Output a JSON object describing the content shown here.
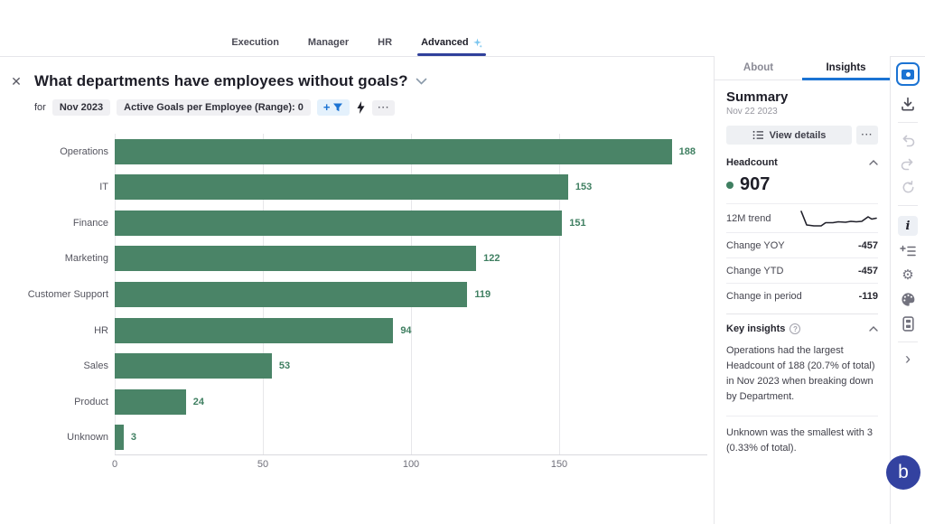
{
  "colors": {
    "accent_blue": "#1b73d3",
    "nav_underline_navy": "#30409b",
    "bar_green": "#4a8467",
    "value_green": "#3f7f61",
    "brand_badge": "#3342a0"
  },
  "top_nav": {
    "tabs": [
      {
        "label": "Execution",
        "active": false
      },
      {
        "label": "Manager",
        "active": false
      },
      {
        "label": "HR",
        "active": false
      },
      {
        "label": "Advanced",
        "active": true,
        "icon": "sparkle-icon"
      }
    ]
  },
  "header": {
    "close_glyph": "✕",
    "title": "What departments have employees without goals?",
    "for_label": "for",
    "chips": [
      {
        "label": "Nov 2023"
      },
      {
        "label": "Active Goals per Employee (Range): 0"
      }
    ],
    "add_filter_plus": "+",
    "more_glyph": "···"
  },
  "chart_data": {
    "type": "bar",
    "orientation": "horizontal",
    "title": "",
    "categories": [
      "Operations",
      "IT",
      "Finance",
      "Marketing",
      "Customer Support",
      "HR",
      "Sales",
      "Product",
      "Unknown"
    ],
    "values": [
      188,
      153,
      151,
      122,
      119,
      94,
      53,
      24,
      3
    ],
    "x_ticks": [
      0,
      50,
      100,
      150
    ],
    "xlim": [
      0,
      200
    ],
    "grid": true,
    "bar_color": "#4a8467",
    "value_label_color": "#3f7f61"
  },
  "right_panel": {
    "tabs": [
      {
        "label": "About",
        "active": false
      },
      {
        "label": "Insights",
        "active": true
      }
    ],
    "summary": {
      "title": "Summary",
      "date": "Nov 22 2023",
      "view_details_label": "View details",
      "more_glyph": "···"
    },
    "headcount": {
      "title": "Headcount",
      "value": "907",
      "rows": [
        {
          "label": "12M trend",
          "value": ""
        },
        {
          "label": "Change YOY",
          "value": "-457"
        },
        {
          "label": "Change YTD",
          "value": "-457"
        },
        {
          "label": "Change in period",
          "value": "-119"
        }
      ]
    },
    "key_insights": {
      "title": "Key insights",
      "help_glyph": "?",
      "paragraphs": [
        "Operations had the largest Headcount of 188 (20.7% of total) in Nov 2023 when breaking down by Department.",
        "Unknown was the smallest with 3 (0.33% of total)."
      ]
    }
  },
  "rail": {
    "gear_glyph": "⚙",
    "info_glyph": "i",
    "chevron_right_glyph": "›"
  },
  "brand": {
    "letter": "b"
  }
}
